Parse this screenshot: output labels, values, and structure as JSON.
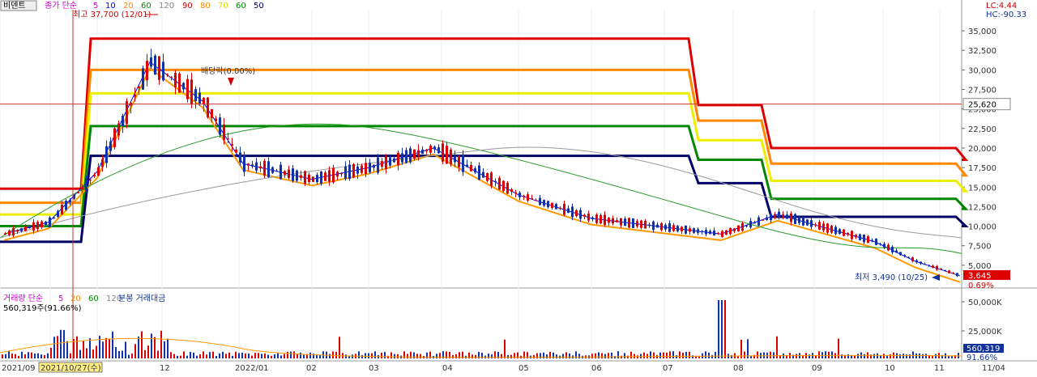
{
  "header": {
    "tab_label": "비덴트",
    "ma_prefix": "종가 단순",
    "ma_periods": [
      "5",
      "10",
      "20",
      "60",
      "120",
      "90",
      "80",
      "70",
      "60",
      "50"
    ],
    "ma_colors": [
      "#cc00cc",
      "#0000ff",
      "#ff8800",
      "#008800",
      "#888888",
      "#cc0000",
      "#ff8800",
      "#dddd00",
      "#008800",
      "#000066"
    ]
  },
  "top_right": {
    "lc": "LC:4.44",
    "hc": "HC:-90.33"
  },
  "volume_header": {
    "label": "거래량 단순",
    "periods": [
      "5",
      "20",
      "60",
      "120"
    ],
    "extra": "분봉 거래대금",
    "current": "560,319주(91.66%)"
  },
  "annotations": {
    "high": "최고 37,700 (12/01)",
    "dividend": "배당락(0.00%)",
    "low": "최저 3,490 (10/25)"
  },
  "price_axis": {
    "ticks": [
      "35,000",
      "32,500",
      "30,000",
      "27,500",
      "25,000",
      "22,500",
      "20,000",
      "17,500",
      "15,000",
      "12,500",
      "10,000",
      "7,500",
      "5,000"
    ],
    "crosshair_value": "25,620",
    "current_price": "3,645",
    "current_change": "0.69%"
  },
  "volume_axis": {
    "ticks": [
      "50,000K",
      "25,000K"
    ],
    "current_volume": "560,319",
    "current_pct": "91.66%"
  },
  "time_axis": {
    "labels": [
      "2021/09",
      "2021/10/27(수)",
      "12",
      "2022/01",
      "02",
      "03",
      "04",
      "05",
      "06",
      "07",
      "08",
      "09",
      "10",
      "11",
      "11/04"
    ]
  },
  "chart_data": {
    "type": "candlestick",
    "title": "비덴트",
    "x_start": "2021/09",
    "x_end": "11/04",
    "ylim": [
      2500,
      37700
    ],
    "high": {
      "value": 37700,
      "date": "12/01"
    },
    "low": {
      "value": 3490,
      "date": "10/25"
    },
    "current": 3645,
    "crosshair": 25620,
    "close_series_approx": [
      {
        "month": "2021/09",
        "close": 9000
      },
      {
        "month": "2021/10",
        "close": 10500
      },
      {
        "month": "2021/11",
        "close": 17000
      },
      {
        "month": "2021/12",
        "close": 31000
      },
      {
        "month": "2021/12b",
        "close": 26000
      },
      {
        "month": "2022/01",
        "close": 18000
      },
      {
        "month": "2022/02",
        "close": 16000
      },
      {
        "month": "2022/03",
        "close": 17500
      },
      {
        "month": "2022/04",
        "close": 20000
      },
      {
        "month": "2022/05",
        "close": 14000
      },
      {
        "month": "2022/06",
        "close": 11000
      },
      {
        "month": "2022/07",
        "close": 9000
      },
      {
        "month": "2022/08",
        "close": 11500
      },
      {
        "month": "2022/09",
        "close": 8000
      },
      {
        "month": "2022/10",
        "close": 5500
      },
      {
        "month": "2022/11",
        "close": 3645
      }
    ],
    "envelope_levels": [
      {
        "name": "90",
        "color": "#dd0000",
        "values": [
          14800,
          34000,
          34000,
          25500,
          20000,
          18500
        ]
      },
      {
        "name": "80",
        "color": "#ff8800",
        "values": [
          13000,
          30000,
          30000,
          23500,
          18000,
          16500
        ]
      },
      {
        "name": "70",
        "color": "#eeee00",
        "values": [
          11500,
          27000,
          27000,
          21000,
          15800,
          14500
        ]
      },
      {
        "name": "60",
        "color": "#008800",
        "values": [
          10000,
          22800,
          22800,
          18500,
          13500,
          12200
        ]
      },
      {
        "name": "50",
        "color": "#000066",
        "values": [
          8000,
          19000,
          19000,
          15500,
          11200,
          10000
        ]
      }
    ]
  }
}
